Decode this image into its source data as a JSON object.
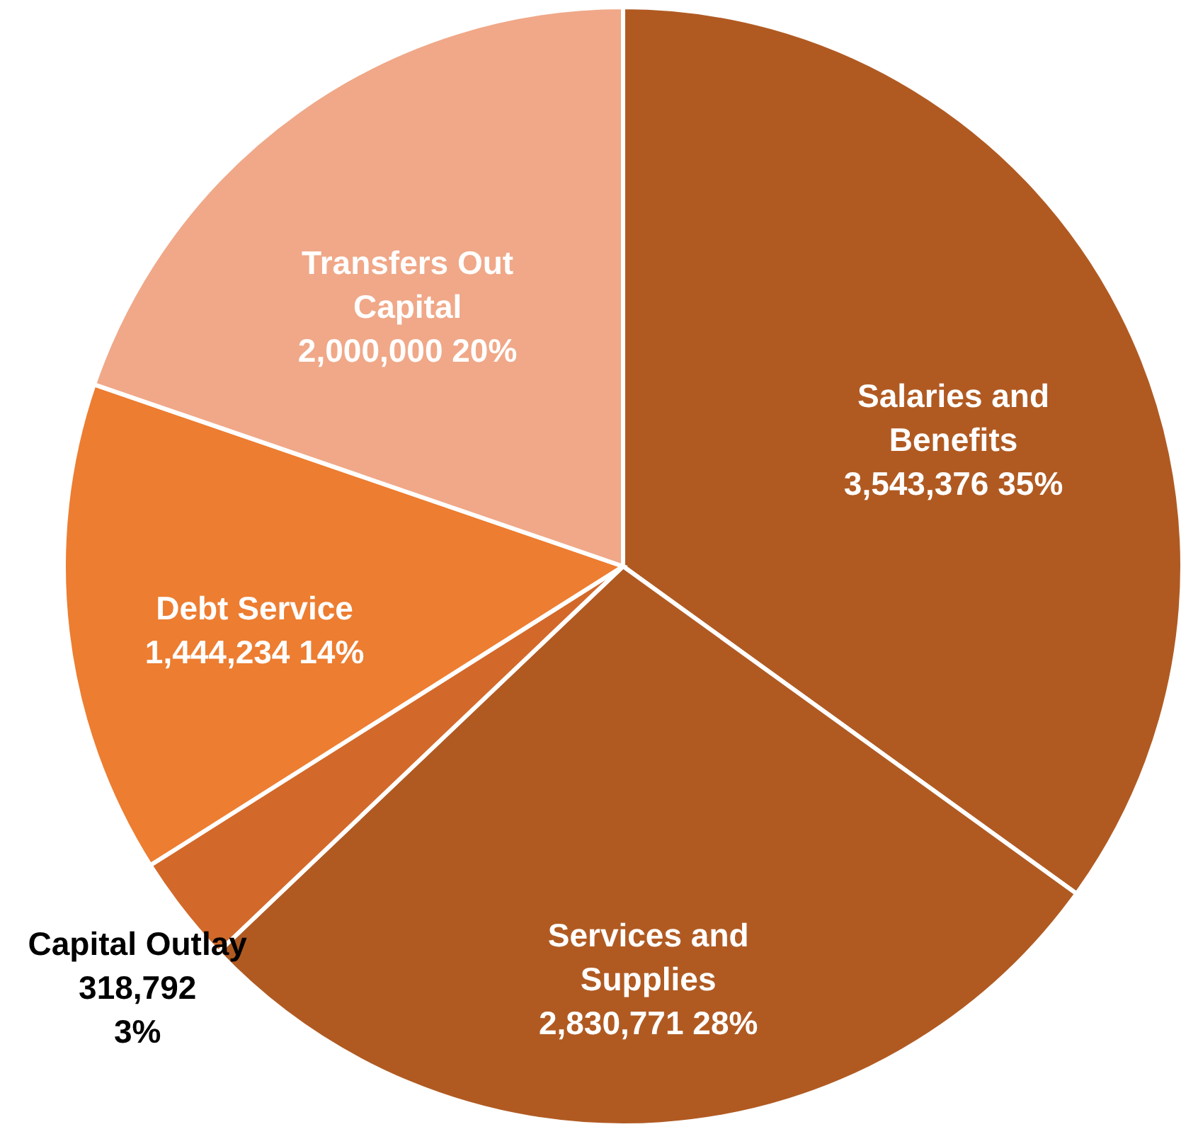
{
  "chart_data": {
    "type": "pie",
    "categories": [
      "Salaries and Benefits",
      "Services and Supplies",
      "Capital Outlay",
      "Debt Service",
      "Transfers Out Capital"
    ],
    "values": [
      3543376,
      2830771,
      318792,
      1444234,
      2000000
    ],
    "value_labels": [
      "3,543,376 35%",
      "2,830,771 28%",
      "318,792 3%",
      "1,444,234 14%",
      "2,000,000 20%"
    ],
    "colors": [
      "#b05a22",
      "#b05a22",
      "#d2692a",
      "#ed7d31",
      "#f0a888"
    ]
  }
}
